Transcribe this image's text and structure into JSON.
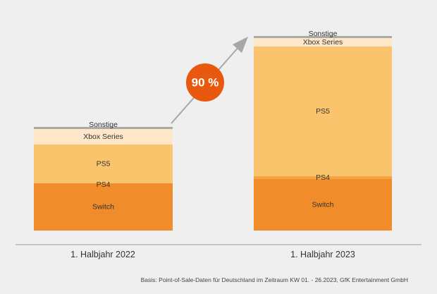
{
  "chart_data": {
    "type": "bar",
    "stacked": true,
    "categories": [
      "1. Halbjahr 2022",
      "1. Halbjahr 2023"
    ],
    "series": [
      {
        "name": "Switch",
        "values": [
          67,
          73
        ],
        "color": "#f08c2a"
      },
      {
        "name": "PS4",
        "values": [
          0,
          4
        ],
        "color": "#f5a442"
      },
      {
        "name": "PS5",
        "values": [
          55,
          184
        ],
        "color": "#f9c46c"
      },
      {
        "name": "Xbox Series",
        "values": [
          22,
          12
        ],
        "color": "#fde7c8"
      },
      {
        "name": "Sonstige",
        "values": [
          3,
          3
        ],
        "color": "#a8aaa6"
      }
    ],
    "segment_labels": [
      [
        "Switch",
        "PS4",
        "PS5",
        "Xbox Series",
        "Sonstige"
      ],
      [
        "Switch",
        "PS4",
        "PS5",
        "Xbox Series",
        "Sonstige"
      ]
    ],
    "annotation": {
      "text": "90 %",
      "badge_color": "#e8590f",
      "arrow_color": "#a6a8a8"
    },
    "source": "Basis: Point-of-Sale-Daten für Deutschland im Zeitraum KW 01. - 26.2023, GfK Entertainment GmbH",
    "ylim": [
      0,
      277
    ],
    "grid": false
  }
}
